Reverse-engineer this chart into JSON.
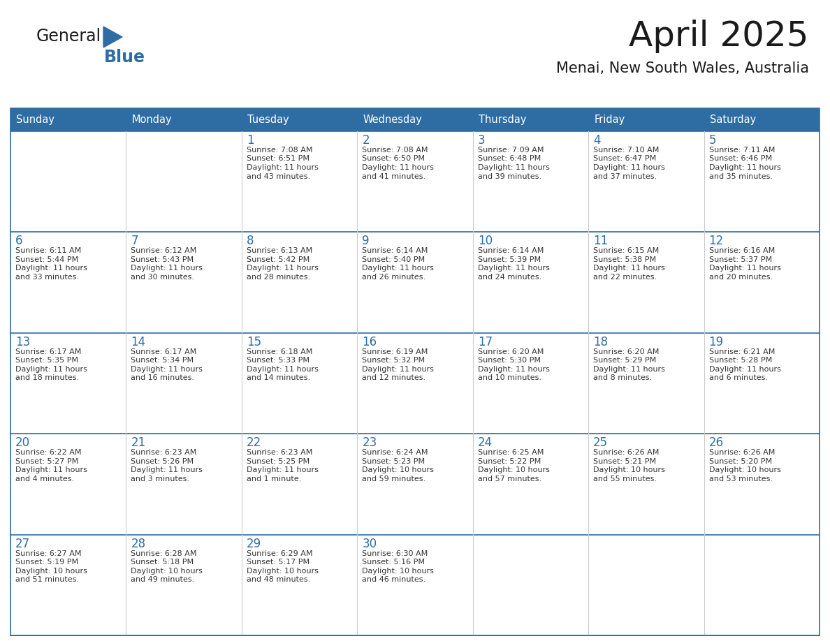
{
  "title": "April 2025",
  "subtitle": "Menai, New South Wales, Australia",
  "header_color": "#2E6DA4",
  "header_text_color": "#FFFFFF",
  "cell_bg_color": "#FFFFFF",
  "day_number_color": "#2E6DA4",
  "cell_text_color": "#333333",
  "border_color": "#2E6DA4",
  "separator_color": "#2E6DA4",
  "days_of_week": [
    "Sunday",
    "Monday",
    "Tuesday",
    "Wednesday",
    "Thursday",
    "Friday",
    "Saturday"
  ],
  "weeks": [
    [
      {
        "day": "",
        "sunrise": "",
        "sunset": "",
        "daylight": ""
      },
      {
        "day": "",
        "sunrise": "",
        "sunset": "",
        "daylight": ""
      },
      {
        "day": "1",
        "sunrise": "7:08 AM",
        "sunset": "6:51 PM",
        "daylight": "11 hours\nand 43 minutes."
      },
      {
        "day": "2",
        "sunrise": "7:08 AM",
        "sunset": "6:50 PM",
        "daylight": "11 hours\nand 41 minutes."
      },
      {
        "day": "3",
        "sunrise": "7:09 AM",
        "sunset": "6:48 PM",
        "daylight": "11 hours\nand 39 minutes."
      },
      {
        "day": "4",
        "sunrise": "7:10 AM",
        "sunset": "6:47 PM",
        "daylight": "11 hours\nand 37 minutes."
      },
      {
        "day": "5",
        "sunrise": "7:11 AM",
        "sunset": "6:46 PM",
        "daylight": "11 hours\nand 35 minutes."
      }
    ],
    [
      {
        "day": "6",
        "sunrise": "6:11 AM",
        "sunset": "5:44 PM",
        "daylight": "11 hours\nand 33 minutes."
      },
      {
        "day": "7",
        "sunrise": "6:12 AM",
        "sunset": "5:43 PM",
        "daylight": "11 hours\nand 30 minutes."
      },
      {
        "day": "8",
        "sunrise": "6:13 AM",
        "sunset": "5:42 PM",
        "daylight": "11 hours\nand 28 minutes."
      },
      {
        "day": "9",
        "sunrise": "6:14 AM",
        "sunset": "5:40 PM",
        "daylight": "11 hours\nand 26 minutes."
      },
      {
        "day": "10",
        "sunrise": "6:14 AM",
        "sunset": "5:39 PM",
        "daylight": "11 hours\nand 24 minutes."
      },
      {
        "day": "11",
        "sunrise": "6:15 AM",
        "sunset": "5:38 PM",
        "daylight": "11 hours\nand 22 minutes."
      },
      {
        "day": "12",
        "sunrise": "6:16 AM",
        "sunset": "5:37 PM",
        "daylight": "11 hours\nand 20 minutes."
      }
    ],
    [
      {
        "day": "13",
        "sunrise": "6:17 AM",
        "sunset": "5:35 PM",
        "daylight": "11 hours\nand 18 minutes."
      },
      {
        "day": "14",
        "sunrise": "6:17 AM",
        "sunset": "5:34 PM",
        "daylight": "11 hours\nand 16 minutes."
      },
      {
        "day": "15",
        "sunrise": "6:18 AM",
        "sunset": "5:33 PM",
        "daylight": "11 hours\nand 14 minutes."
      },
      {
        "day": "16",
        "sunrise": "6:19 AM",
        "sunset": "5:32 PM",
        "daylight": "11 hours\nand 12 minutes."
      },
      {
        "day": "17",
        "sunrise": "6:20 AM",
        "sunset": "5:30 PM",
        "daylight": "11 hours\nand 10 minutes."
      },
      {
        "day": "18",
        "sunrise": "6:20 AM",
        "sunset": "5:29 PM",
        "daylight": "11 hours\nand 8 minutes."
      },
      {
        "day": "19",
        "sunrise": "6:21 AM",
        "sunset": "5:28 PM",
        "daylight": "11 hours\nand 6 minutes."
      }
    ],
    [
      {
        "day": "20",
        "sunrise": "6:22 AM",
        "sunset": "5:27 PM",
        "daylight": "11 hours\nand 4 minutes."
      },
      {
        "day": "21",
        "sunrise": "6:23 AM",
        "sunset": "5:26 PM",
        "daylight": "11 hours\nand 3 minutes."
      },
      {
        "day": "22",
        "sunrise": "6:23 AM",
        "sunset": "5:25 PM",
        "daylight": "11 hours\nand 1 minute."
      },
      {
        "day": "23",
        "sunrise": "6:24 AM",
        "sunset": "5:23 PM",
        "daylight": "10 hours\nand 59 minutes."
      },
      {
        "day": "24",
        "sunrise": "6:25 AM",
        "sunset": "5:22 PM",
        "daylight": "10 hours\nand 57 minutes."
      },
      {
        "day": "25",
        "sunrise": "6:26 AM",
        "sunset": "5:21 PM",
        "daylight": "10 hours\nand 55 minutes."
      },
      {
        "day": "26",
        "sunrise": "6:26 AM",
        "sunset": "5:20 PM",
        "daylight": "10 hours\nand 53 minutes."
      }
    ],
    [
      {
        "day": "27",
        "sunrise": "6:27 AM",
        "sunset": "5:19 PM",
        "daylight": "10 hours\nand 51 minutes."
      },
      {
        "day": "28",
        "sunrise": "6:28 AM",
        "sunset": "5:18 PM",
        "daylight": "10 hours\nand 49 minutes."
      },
      {
        "day": "29",
        "sunrise": "6:29 AM",
        "sunset": "5:17 PM",
        "daylight": "10 hours\nand 48 minutes."
      },
      {
        "day": "30",
        "sunrise": "6:30 AM",
        "sunset": "5:16 PM",
        "daylight": "10 hours\nand 46 minutes."
      },
      {
        "day": "",
        "sunrise": "",
        "sunset": "",
        "daylight": ""
      },
      {
        "day": "",
        "sunrise": "",
        "sunset": "",
        "daylight": ""
      },
      {
        "day": "",
        "sunrise": "",
        "sunset": "",
        "daylight": ""
      }
    ]
  ]
}
